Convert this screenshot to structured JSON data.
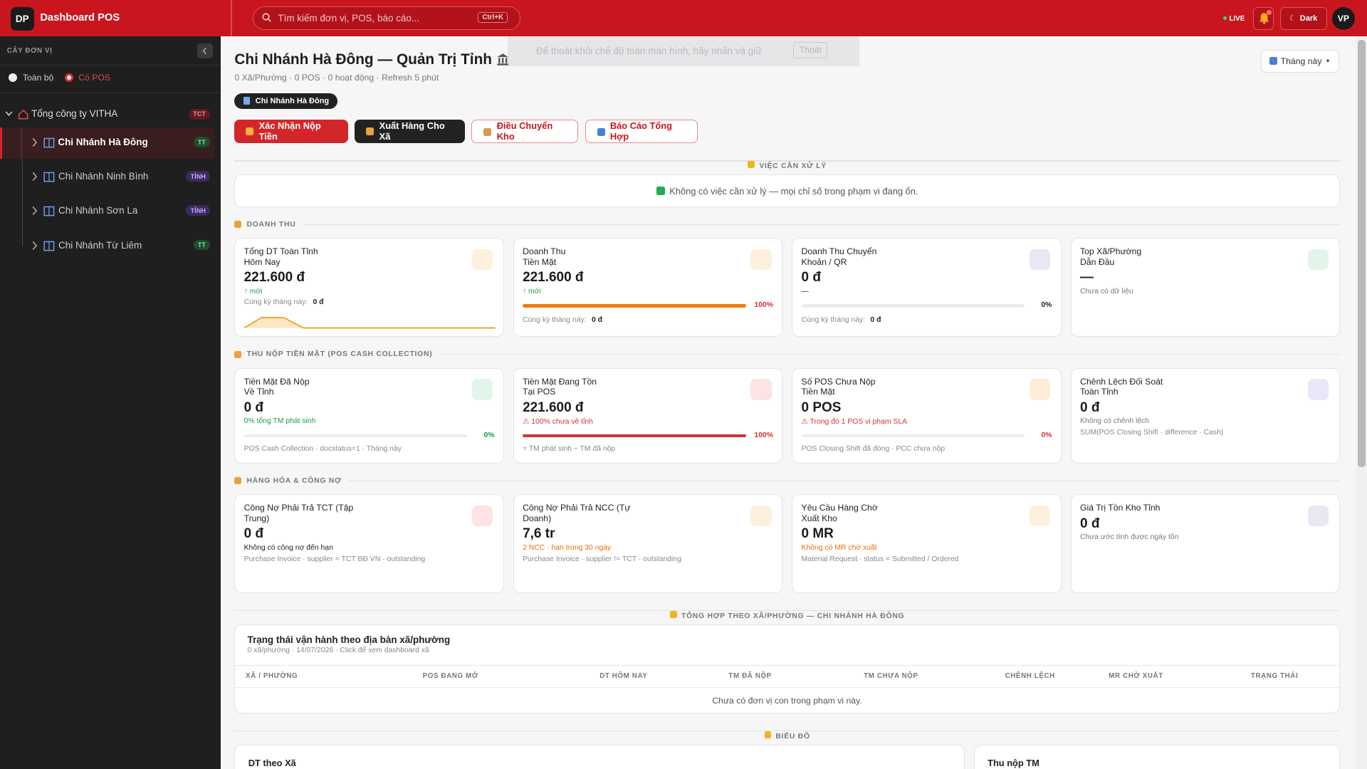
{
  "header": {
    "logo": "DP",
    "title": "Dashboard POS",
    "search_placeholder": "Tìm kiếm đơn vị, POS, báo cáo...",
    "shortcut": "Ctrl+K",
    "live": "LIVE",
    "theme": "Dark",
    "avatar": "VP"
  },
  "toast": {
    "text": "Để thoát khỏi chế độ toàn màn hình, hãy nhấn và giữ",
    "key": "Thoát"
  },
  "sidebar": {
    "title": "CÂY ĐƠN VỊ",
    "filters": [
      {
        "label": "Toàn bộ",
        "selected": false
      },
      {
        "label": "Có POS",
        "selected": true
      }
    ],
    "root": {
      "label": "Tổng công ty VITHA",
      "badge": "TCT"
    },
    "children": [
      {
        "label": "Chi Nhánh Hà Đông",
        "badge": "TT",
        "active": true
      },
      {
        "label": "Chi Nhánh Ninh Bình",
        "badge": "TỈNH",
        "active": false
      },
      {
        "label": "Chi Nhánh Sơn La",
        "badge": "TỈNH",
        "active": false
      },
      {
        "label": "Chi Nhánh Từ Liêm",
        "badge": "TT",
        "active": false
      }
    ]
  },
  "page": {
    "title": "Chi Nhánh Hà Đông — Quản Trị Tỉnh",
    "subtitle": "0 Xã/Phường · 0 POS · 0 hoạt động · Refresh 5 phút",
    "chip": "Chi Nhánh Hà Đông",
    "period": "Tháng này",
    "actions": [
      {
        "label": "Xác Nhận Nộp Tiền",
        "style": "red"
      },
      {
        "label": "Xuất Hàng Cho Xã",
        "style": "dark"
      },
      {
        "label": "Điều Chuyển Kho",
        "style": "outline"
      },
      {
        "label": "Báo Cáo Tổng Hợp",
        "style": "outline"
      }
    ]
  },
  "pending": {
    "title": "VIỆC CẦN XỬ LÝ",
    "message": "Không có việc cần xử lý — mọi chỉ số trong phạm vi đang ổn."
  },
  "sections": [
    {
      "title": "DOANH THU",
      "cards": [
        {
          "title": [
            "Tổng DT Toàn Tỉnh",
            "Hôm Nay"
          ],
          "value": "221.600 đ",
          "note": "↑ mới",
          "tone": "green",
          "compare_label": "Cùng kỳ tháng này:",
          "compare_value": "0 đ",
          "sparkline": true,
          "icon_color": "#fdf1dc"
        },
        {
          "title": [
            "Doanh Thu",
            "Tiền Mặt"
          ],
          "value": "221.600 đ",
          "note": "↑ mới",
          "tone": "green",
          "progress": 100,
          "progress_label": "100%",
          "bar_color": "#ec7a12",
          "compare_label": "Cùng kỳ tháng này:",
          "compare_value": "0 đ",
          "icon_color": "#fdf1dc"
        },
        {
          "title": [
            "Doanh Thu Chuyển",
            "Khoản / QR"
          ],
          "value": "0 đ",
          "note": "—",
          "tone": "dark",
          "progress": 0,
          "progress_label": "0%",
          "bar_color": "#ec7a12",
          "compare_label": "Cùng kỳ tháng này:",
          "compare_value": "0 đ",
          "icon_color": "#e8e8f4"
        },
        {
          "title": [
            "Top Xã/Phường",
            "Dẫn Đầu"
          ],
          "value": "—",
          "note": "Chưa có dữ liệu",
          "tone": "muted",
          "icon_color": "#e3f5ea"
        }
      ]
    },
    {
      "title": "THU NỘP TIỀN MẶT (POS CASH COLLECTION)",
      "cards": [
        {
          "title": [
            "Tiền Mặt Đã Nộp",
            "Về Tỉnh"
          ],
          "value": "0 đ",
          "note": "0% tổng TM phát sinh",
          "tone": "green",
          "progress": 0,
          "progress_label": "0%",
          "bar_color": "#1a9a4a",
          "label_color": "#1a9a4a",
          "footer": "POS Cash Collection · docstatus=1 · Tháng này",
          "icon_color": "#e3f5ea"
        },
        {
          "title": [
            "Tiền Mặt Đang Tồn",
            "Tại POS"
          ],
          "value": "221.600 đ",
          "note": "⚠ 100% chưa về tỉnh",
          "tone": "red",
          "progress": 100,
          "progress_label": "100%",
          "bar_color": "#d9302f",
          "label_color": "#d9302f",
          "footer": "= TM phát sinh − TM đã nộp",
          "icon_color": "#fde3e3"
        },
        {
          "title": [
            "Số POS Chưa Nộp",
            "Tiền Mặt"
          ],
          "value": "0 POS",
          "note": "⚠ Trong đó 1 POS vi phạm SLA",
          "tone": "red",
          "progress": 0,
          "progress_label": "0%",
          "bar_color": "#d9302f",
          "label_color": "#d9302f",
          "footer": "POS Closing Shift đã đóng · PCC chưa nộp",
          "icon_color": "#fdecd8"
        },
        {
          "title": [
            "Chênh Lệch Đối Soát",
            "Toàn Tỉnh"
          ],
          "value": "0 đ",
          "note": "Không có chênh lệch",
          "tone": "muted",
          "footer": "SUM(POS Closing Shift · difference · Cash)",
          "icon_color": "#ece6fa"
        }
      ]
    },
    {
      "title": "HÀNG HÓA & CÔNG NỢ",
      "cards": [
        {
          "title": [
            "Công Nợ Phải Trả TCT (Tập",
            "Trung)"
          ],
          "value": "0 đ",
          "note": "Không có công nợ đến hạn",
          "tone": "dark",
          "footer": "Purchase Invoice · supplier = TCT BĐ VN · outstanding",
          "icon_color": "#fde3e3"
        },
        {
          "title": [
            "Công Nợ Phải Trả NCC (Tự",
            "Doanh)"
          ],
          "value": "7,6 tr",
          "note": "2 NCC · hạn trong 30 ngày",
          "tone": "orange",
          "footer": "Purchase Invoice · supplier != TCT · outstanding",
          "icon_color": "#fdf1dc"
        },
        {
          "title": [
            "Yêu Cầu Hàng Chờ",
            "Xuất Kho"
          ],
          "value": "0 MR",
          "note": "Không có MR chờ xuất",
          "tone": "orange",
          "footer": "Material Request · status = Submitted / Ordered",
          "icon_color": "#fdf1dc"
        },
        {
          "title": [
            "Giá Trị Tồn Kho Tỉnh"
          ],
          "value": "0 đ",
          "note": "Chưa ước tính được ngày tồn",
          "tone": "muted",
          "icon_color": "#e8e8f4"
        }
      ]
    }
  ],
  "summary": {
    "heading": "TỔNG HỢP THEO XÃ/PHƯỜNG — CHI NHÁNH HÀ ĐÔNG",
    "title": "Trạng thái vận hành theo địa bàn xã/phường",
    "subtitle": "0 xã/phường · 14/07/2026 · Click để xem dashboard xã",
    "columns": [
      "XÃ / PHƯỜNG",
      "POS ĐANG MỞ",
      "DT HÔM NAY",
      "TM ĐÃ NỘP",
      "TM CHƯA NỘP",
      "CHÊNH LỆCH",
      "MR CHỜ XUẤT",
      "TRẠNG THÁI"
    ],
    "empty": "Chưa có đơn vị con trong phạm vi này."
  },
  "charts": {
    "heading": "BIỂU ĐỒ",
    "panels": [
      "DT theo Xã",
      "Thu nộp TM"
    ]
  }
}
